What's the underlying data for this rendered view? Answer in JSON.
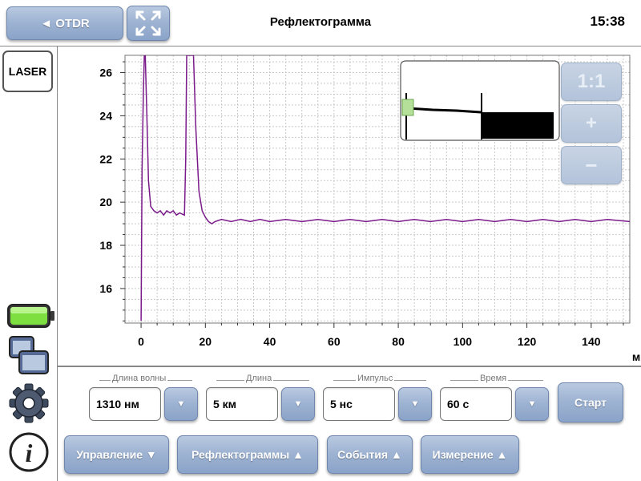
{
  "header": {
    "back_label": "◄ OTDR",
    "title": "Рефлектограмма",
    "time": "15:38"
  },
  "left_toolbar": {
    "laser_label": "LASER"
  },
  "zoom": {
    "reset_label": "1:1",
    "in_label": "+",
    "out_label": "−"
  },
  "chart_data": {
    "type": "line",
    "xlim": [
      -5,
      152
    ],
    "ylim": [
      14.4,
      26.8
    ],
    "xticks": [
      0,
      20,
      40,
      60,
      80,
      100,
      120,
      140
    ],
    "yticks": [
      16,
      18,
      20,
      22,
      24,
      26
    ],
    "x_unit": "м",
    "grid": true,
    "series": [
      {
        "color": "#7a1a8a",
        "points": [
          [
            0,
            14.5
          ],
          [
            0.3,
            21.5
          ],
          [
            0.7,
            25.0
          ],
          [
            1.0,
            26.8
          ],
          [
            1.3,
            26.8
          ],
          [
            1.8,
            24.0
          ],
          [
            2.3,
            21.0
          ],
          [
            3.0,
            19.8
          ],
          [
            4,
            19.6
          ],
          [
            5,
            19.5
          ],
          [
            6,
            19.6
          ],
          [
            7,
            19.4
          ],
          [
            8,
            19.6
          ],
          [
            9,
            19.5
          ],
          [
            10,
            19.6
          ],
          [
            11,
            19.4
          ],
          [
            12,
            19.5
          ],
          [
            13.5,
            19.4
          ],
          [
            13.9,
            22.0
          ],
          [
            14.2,
            26.8
          ],
          [
            16.3,
            26.8
          ],
          [
            17,
            23.5
          ],
          [
            18,
            20.5
          ],
          [
            19,
            19.6
          ],
          [
            20,
            19.3
          ],
          [
            21,
            19.1
          ],
          [
            22,
            19.0
          ],
          [
            23,
            19.1
          ],
          [
            25,
            19.2
          ],
          [
            28,
            19.1
          ],
          [
            31,
            19.2
          ],
          [
            34,
            19.1
          ],
          [
            37,
            19.2
          ],
          [
            40,
            19.1
          ],
          [
            45,
            19.2
          ],
          [
            50,
            19.1
          ],
          [
            55,
            19.2
          ],
          [
            60,
            19.1
          ],
          [
            65,
            19.2
          ],
          [
            70,
            19.1
          ],
          [
            75,
            19.2
          ],
          [
            80,
            19.1
          ],
          [
            85,
            19.2
          ],
          [
            90,
            19.1
          ],
          [
            95,
            19.2
          ],
          [
            100,
            19.1
          ],
          [
            105,
            19.2
          ],
          [
            110,
            19.1
          ],
          [
            115,
            19.2
          ],
          [
            120,
            19.1
          ],
          [
            125,
            19.2
          ],
          [
            130,
            19.1
          ],
          [
            135,
            19.2
          ],
          [
            140,
            19.1
          ],
          [
            145,
            19.2
          ],
          [
            152,
            19.1
          ]
        ]
      }
    ]
  },
  "settings": {
    "wavelength": {
      "label": "Длина волны",
      "value": "1310 нм"
    },
    "length": {
      "label": "Длина",
      "value": "5 км"
    },
    "pulse": {
      "label": "Импульс",
      "value": "5 нс"
    },
    "time": {
      "label": "Время",
      "value": "60 с"
    },
    "start_label": "Старт"
  },
  "menu": {
    "control": "Управление ▼",
    "traces": "Рефлектограммы ▲",
    "events": "События ▲",
    "measurement": "Измерение ▲"
  }
}
